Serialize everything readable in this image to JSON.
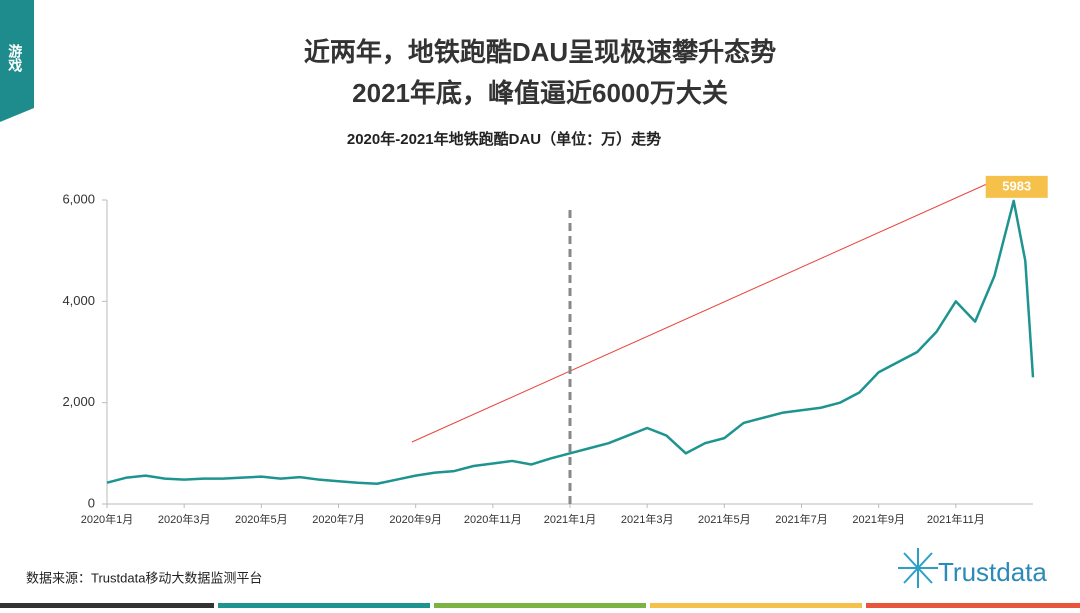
{
  "section_tab": "游戏",
  "source": "数据来源：Trustdata移动大数据监测平台",
  "logo": "Trustdata",
  "chart_data": {
    "type": "line",
    "title": [
      "近两年，地铁跑酷DAU呈现极速攀升态势",
      "2021年底，峰值逼近6000万大关"
    ],
    "subtitle": "2020年-2021年地铁跑酷DAU（单位：万）走势",
    "x": [
      0,
      0.5,
      1,
      1.5,
      2,
      2.5,
      3,
      3.5,
      4,
      4.5,
      5,
      5.5,
      6,
      6.5,
      7,
      7.5,
      8,
      8.5,
      9,
      9.5,
      10,
      10.5,
      11,
      11.5,
      12,
      12.5,
      13,
      13.5,
      14,
      14.5,
      15,
      15.5,
      16,
      16.5,
      17,
      17.5,
      18,
      18.5,
      19,
      19.5,
      20,
      20.5,
      21,
      21.5,
      22,
      22.5,
      23,
      23.5,
      23.8,
      24
    ],
    "series": [
      {
        "name": "DAU",
        "color": "#1e9490",
        "values": [
          420,
          520,
          560,
          500,
          480,
          500,
          500,
          520,
          540,
          500,
          530,
          480,
          450,
          420,
          400,
          480,
          560,
          620,
          650,
          750,
          800,
          850,
          780,
          900,
          1000,
          1100,
          1200,
          1350,
          1500,
          1350,
          1000,
          1200,
          1300,
          1600,
          1700,
          1800,
          1850,
          1900,
          2000,
          2200,
          2600,
          2800,
          3000,
          3400,
          4000,
          3600,
          4500,
          5983,
          4800,
          2500
        ]
      }
    ],
    "xlim": [
      0,
      24
    ],
    "xticks": [
      {
        "value": 0,
        "label": "2020年1月"
      },
      {
        "value": 2,
        "label": "2020年3月"
      },
      {
        "value": 4,
        "label": "2020年5月"
      },
      {
        "value": 6,
        "label": "2020年7月"
      },
      {
        "value": 8,
        "label": "2020年9月"
      },
      {
        "value": 10,
        "label": "2020年11月"
      },
      {
        "value": 12,
        "label": "2021年1月"
      },
      {
        "value": 14,
        "label": "2021年3月"
      },
      {
        "value": 16,
        "label": "2021年5月"
      },
      {
        "value": 18,
        "label": "2021年7月"
      },
      {
        "value": 20,
        "label": "2021年9月"
      },
      {
        "value": 22,
        "label": "2021年11月"
      }
    ],
    "ylim": [
      0,
      6000
    ],
    "yticks": [
      0,
      {
        "value": 2000,
        "label": "2,000"
      },
      {
        "value": 4000,
        "label": "4,000"
      },
      {
        "value": 6000,
        "label": "6,000"
      }
    ],
    "reference_line_x": 12
  }
}
